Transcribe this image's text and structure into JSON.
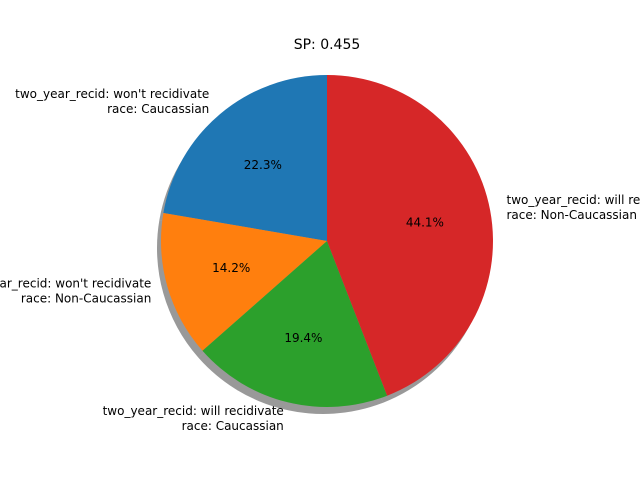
{
  "chart_data": {
    "type": "pie",
    "title": "SP: 0.455",
    "start_angle_deg": 90,
    "direction": "counterclockwise",
    "shadow": true,
    "slices": [
      {
        "label_line1": "two_year_recid: won't recidivate",
        "label_line2": "race: Caucassian",
        "value": 22.3,
        "pct_label": "22.3%",
        "color": "#1f77b4"
      },
      {
        "label_line1": "two_year_recid: won't recidivate",
        "label_line2": "race: Non-Caucassian",
        "value": 14.2,
        "pct_label": "14.2%",
        "color": "#ff7f0e"
      },
      {
        "label_line1": "two_year_recid: will recidivate",
        "label_line2": "race: Caucassian",
        "value": 19.4,
        "pct_label": "19.4%",
        "color": "#2ca02c"
      },
      {
        "label_line1": "two_year_recid: will recidivate",
        "label_line2": "race: Non-Caucassian",
        "value": 44.1,
        "pct_label": "44.1%",
        "color": "#d62728"
      }
    ]
  }
}
